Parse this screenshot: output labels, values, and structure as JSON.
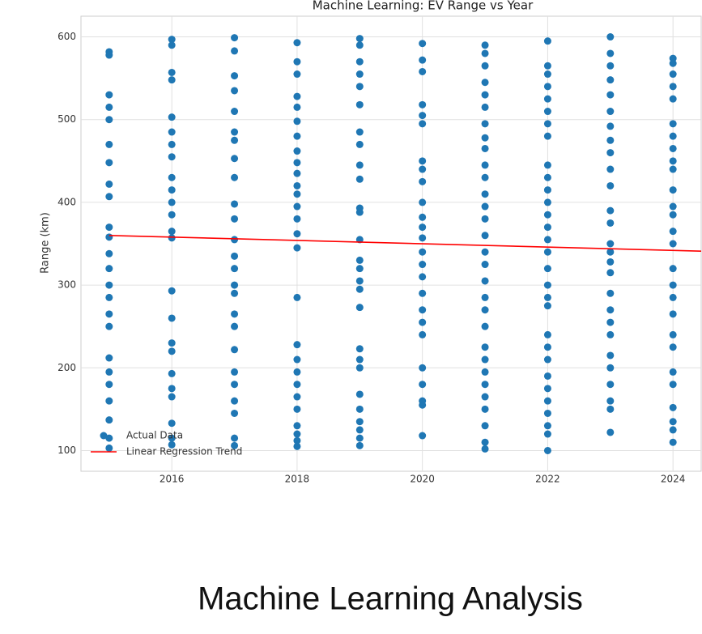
{
  "chart_data": {
    "type": "scatter",
    "title": "Machine Learning: EV Range vs Year",
    "y_label": "Range (km)",
    "xlim": [
      2014.55,
      2024.45
    ],
    "ylim": [
      75,
      625
    ],
    "xticks": [
      2016,
      2018,
      2020,
      2022,
      2024
    ],
    "yticks": [
      100,
      200,
      300,
      400,
      500,
      600
    ],
    "grid": true,
    "legend": "lower left",
    "series": [
      {
        "name": "Actual Data",
        "color": "#1f77b4",
        "x": [
          2015,
          2015,
          2015,
          2015,
          2015,
          2015,
          2015,
          2015,
          2015,
          2015,
          2015,
          2015,
          2015,
          2015,
          2015,
          2015,
          2015,
          2015,
          2015,
          2015,
          2015,
          2015,
          2015,
          2015,
          2016,
          2016,
          2016,
          2016,
          2016,
          2016,
          2016,
          2016,
          2016,
          2016,
          2016,
          2016,
          2016,
          2016,
          2016,
          2016,
          2016,
          2016,
          2016,
          2016,
          2016,
          2016,
          2016,
          2016,
          2017,
          2017,
          2017,
          2017,
          2017,
          2017,
          2017,
          2017,
          2017,
          2017,
          2017,
          2017,
          2017,
          2017,
          2017,
          2017,
          2017,
          2017,
          2017,
          2017,
          2017,
          2017,
          2017,
          2017,
          2017,
          2018,
          2018,
          2018,
          2018,
          2018,
          2018,
          2018,
          2018,
          2018,
          2018,
          2018,
          2018,
          2018,
          2018,
          2018,
          2018,
          2018,
          2018,
          2018,
          2018,
          2018,
          2018,
          2018,
          2018,
          2018,
          2018,
          2018,
          2019,
          2019,
          2019,
          2019,
          2019,
          2019,
          2019,
          2019,
          2019,
          2019,
          2019,
          2019,
          2019,
          2019,
          2019,
          2019,
          2019,
          2019,
          2019,
          2019,
          2019,
          2019,
          2019,
          2019,
          2019,
          2019,
          2019,
          2020,
          2020,
          2020,
          2020,
          2020,
          2020,
          2020,
          2020,
          2020,
          2020,
          2020,
          2020,
          2020,
          2020,
          2020,
          2020,
          2020,
          2020,
          2020,
          2020,
          2020,
          2020,
          2020,
          2020,
          2020,
          2021,
          2021,
          2021,
          2021,
          2021,
          2021,
          2021,
          2021,
          2021,
          2021,
          2021,
          2021,
          2021,
          2021,
          2021,
          2021,
          2021,
          2021,
          2021,
          2021,
          2021,
          2021,
          2021,
          2021,
          2021,
          2021,
          2021,
          2021,
          2021,
          2021,
          2022,
          2022,
          2022,
          2022,
          2022,
          2022,
          2022,
          2022,
          2022,
          2022,
          2022,
          2022,
          2022,
          2022,
          2022,
          2022,
          2022,
          2022,
          2022,
          2022,
          2022,
          2022,
          2022,
          2022,
          2022,
          2022,
          2022,
          2022,
          2022,
          2022,
          2023,
          2023,
          2023,
          2023,
          2023,
          2023,
          2023,
          2023,
          2023,
          2023,
          2023,
          2023,
          2023,
          2023,
          2023,
          2023,
          2023,
          2023,
          2023,
          2023,
          2023,
          2023,
          2023,
          2023,
          2023,
          2023,
          2023,
          2024,
          2024,
          2024,
          2024,
          2024,
          2024,
          2024,
          2024,
          2024,
          2024,
          2024,
          2024,
          2024,
          2024,
          2024,
          2024,
          2024,
          2024,
          2024,
          2024,
          2024,
          2024,
          2024,
          2024,
          2024,
          2024,
          2024
        ],
        "values": [
          582,
          578,
          530,
          515,
          500,
          470,
          448,
          422,
          407,
          370,
          358,
          338,
          320,
          300,
          285,
          265,
          250,
          212,
          195,
          180,
          160,
          137,
          115,
          103,
          597,
          590,
          557,
          548,
          503,
          485,
          470,
          455,
          430,
          415,
          400,
          385,
          365,
          357,
          293,
          260,
          230,
          220,
          193,
          175,
          165,
          133,
          115,
          107,
          599,
          583,
          553,
          535,
          510,
          485,
          475,
          453,
          430,
          398,
          380,
          355,
          335,
          320,
          300,
          290,
          265,
          250,
          222,
          195,
          180,
          160,
          145,
          115,
          106,
          593,
          570,
          555,
          528,
          515,
          498,
          480,
          462,
          448,
          435,
          420,
          410,
          395,
          380,
          362,
          345,
          285,
          228,
          210,
          195,
          180,
          165,
          150,
          130,
          120,
          112,
          105,
          598,
          590,
          570,
          555,
          540,
          518,
          485,
          470,
          445,
          428,
          393,
          388,
          355,
          330,
          320,
          305,
          295,
          273,
          223,
          210,
          200,
          168,
          150,
          135,
          125,
          115,
          106,
          592,
          572,
          558,
          518,
          505,
          495,
          450,
          440,
          425,
          400,
          382,
          370,
          357,
          340,
          325,
          310,
          290,
          270,
          255,
          240,
          200,
          180,
          160,
          155,
          118,
          590,
          580,
          565,
          545,
          530,
          515,
          495,
          478,
          465,
          445,
          430,
          410,
          395,
          380,
          360,
          340,
          325,
          305,
          285,
          270,
          250,
          225,
          210,
          195,
          180,
          165,
          150,
          130,
          110,
          102,
          595,
          565,
          555,
          540,
          525,
          510,
          495,
          480,
          445,
          430,
          415,
          400,
          385,
          370,
          355,
          340,
          320,
          300,
          285,
          275,
          240,
          225,
          210,
          190,
          175,
          160,
          145,
          130,
          120,
          100,
          600,
          580,
          565,
          548,
          530,
          510,
          492,
          475,
          460,
          440,
          420,
          390,
          375,
          350,
          340,
          328,
          315,
          290,
          270,
          255,
          240,
          215,
          200,
          180,
          160,
          150,
          122,
          574,
          568,
          555,
          540,
          525,
          495,
          480,
          465,
          450,
          440,
          415,
          395,
          385,
          365,
          350,
          320,
          300,
          285,
          265,
          240,
          225,
          195,
          180,
          152,
          135,
          125,
          110
        ]
      },
      {
        "name": "Linear Regression Trend",
        "color": "#ff0000",
        "type": "line",
        "x": [
          2015,
          2024.45
        ],
        "values": [
          360,
          341
        ]
      }
    ]
  },
  "caption": "Machine Learning Analysis"
}
